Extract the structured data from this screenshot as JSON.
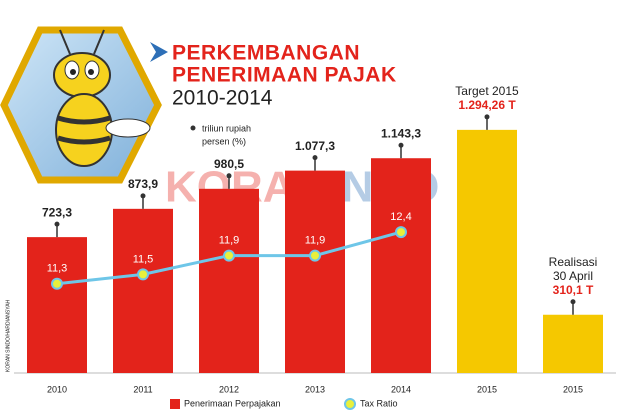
{
  "chart_data": {
    "type": "bar",
    "title": "PERKEMBANGAN",
    "title_line2": "PENERIMAAN PAJAK",
    "subtitle": "2010-2014",
    "unit_notes": [
      "triliun rupiah",
      "persen (%)"
    ],
    "watermark": [
      "KORAN",
      "SINDO"
    ],
    "credit": "KORAN SINDO/HARDIANSYAH",
    "categories": [
      "2010",
      "2011",
      "2012",
      "2013",
      "2014",
      "2015",
      "2015"
    ],
    "values": [
      723.3,
      873.9,
      980.5,
      1077.3,
      1143.3,
      1294.26,
      310.1
    ],
    "value_labels": [
      "723,3",
      "873,9",
      "980,5",
      "1.077,3",
      "1.143,3",
      "1.294,26 T",
      "310,1 T"
    ],
    "colors": [
      "#e3231b",
      "#e3231b",
      "#e3231b",
      "#e3231b",
      "#e3231b",
      "#f5c800",
      "#f5c800"
    ],
    "annotations": [
      {
        "index": 5,
        "lines": [
          "Target 2015"
        ]
      },
      {
        "index": 6,
        "lines": [
          "Realisasi",
          "30 April"
        ]
      }
    ],
    "ylim": [
      0,
      1400
    ],
    "y2lim": [
      9.4,
      15
    ],
    "series": [
      {
        "name": "Penerimaan Perpajakan",
        "color": "#e3231b"
      },
      {
        "name": "Tax Ratio",
        "type": "line",
        "axis": "y2",
        "color": "#6ec6e8",
        "marker_color": "#e8f03c",
        "values": [
          11.3,
          11.5,
          11.9,
          11.9,
          12.4,
          null,
          null
        ],
        "value_labels": [
          "11,3",
          "11,5",
          "11,9",
          "11,9",
          "12,4",
          null,
          null
        ]
      }
    ]
  }
}
